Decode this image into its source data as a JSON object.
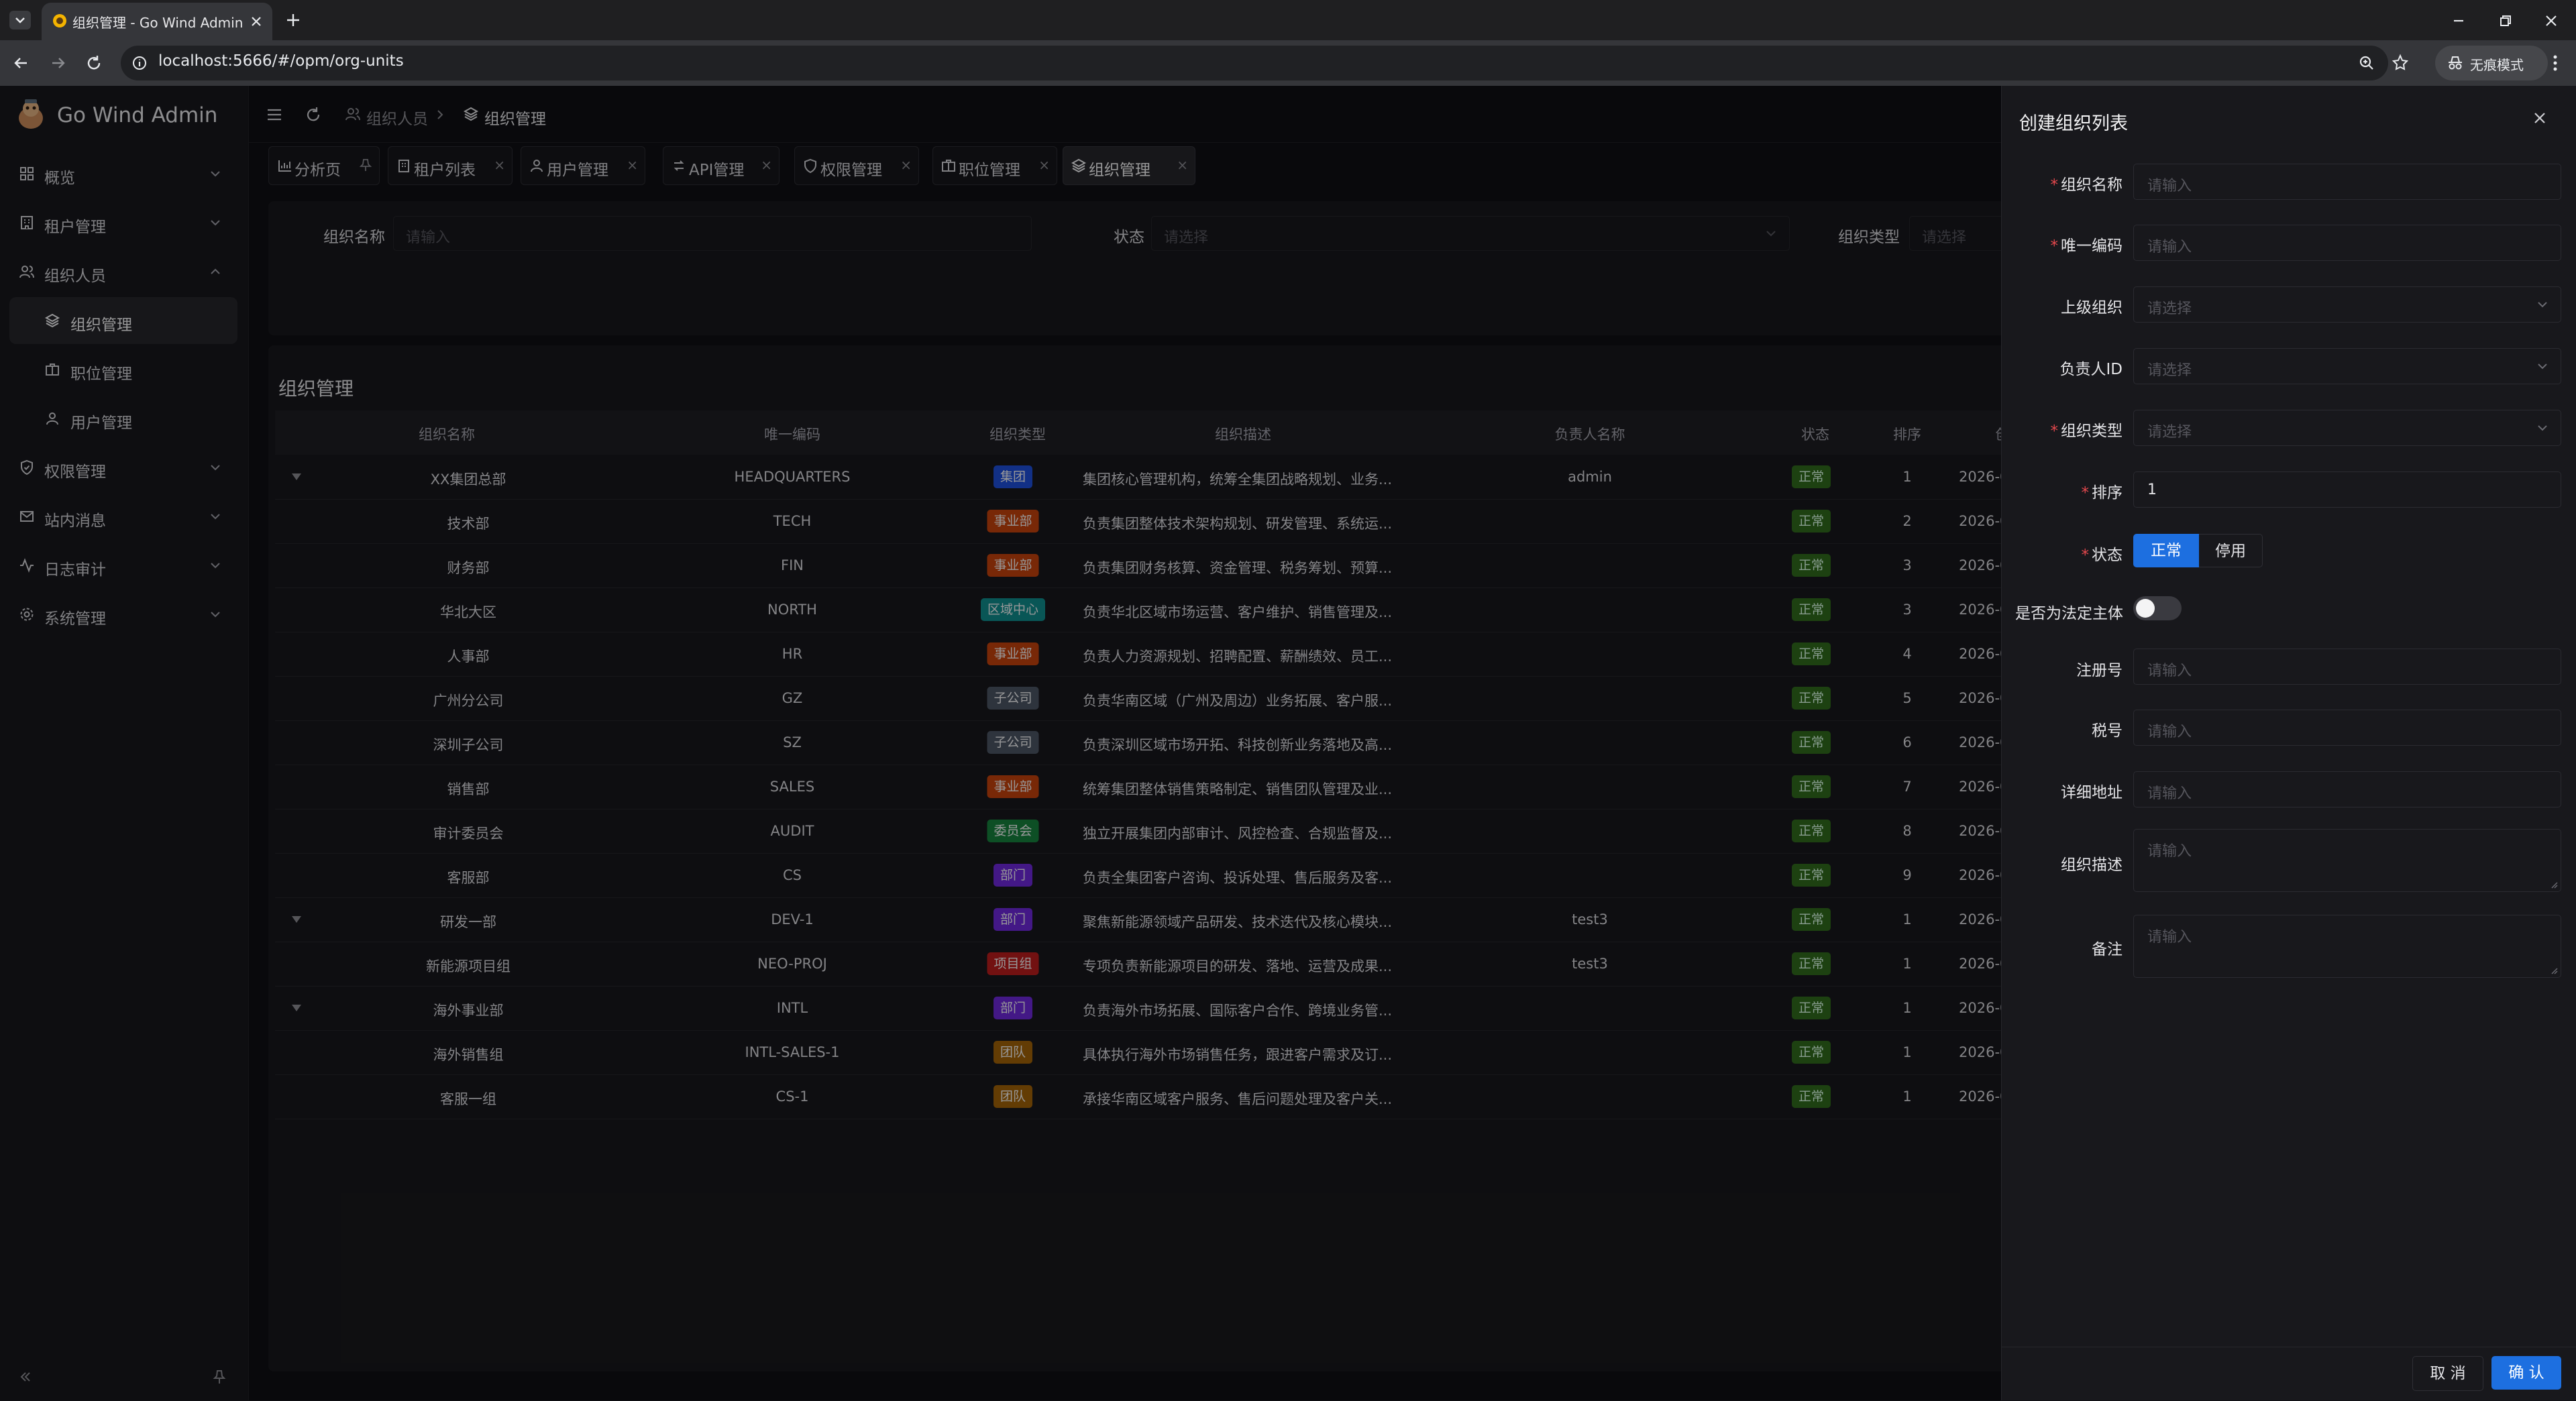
{
  "browser": {
    "tab_title": "组织管理 - Go Wind Admin",
    "url": "localhost:5666/#/opm/org-units",
    "incognito_label": "无痕模式"
  },
  "app": {
    "name": "Go Wind Admin"
  },
  "sidebar": {
    "items": [
      {
        "label": "概览",
        "icon": "dashboard-icon",
        "expandable": true
      },
      {
        "label": "租户管理",
        "icon": "building-icon",
        "expandable": true
      },
      {
        "label": "组织人员",
        "icon": "users-icon",
        "expandable": true,
        "expanded": true
      },
      {
        "label": "组织管理",
        "icon": "layers-icon",
        "sub": true,
        "active": true
      },
      {
        "label": "职位管理",
        "icon": "briefcase-icon",
        "sub": true
      },
      {
        "label": "用户管理",
        "icon": "user-icon",
        "sub": true
      },
      {
        "label": "权限管理",
        "icon": "shield-icon",
        "expandable": true
      },
      {
        "label": "站内消息",
        "icon": "mail-icon",
        "expandable": true
      },
      {
        "label": "日志审计",
        "icon": "activity-icon",
        "expandable": true
      },
      {
        "label": "系统管理",
        "icon": "gear-icon",
        "expandable": true
      }
    ]
  },
  "breadcrumb": [
    {
      "label": "组织人员",
      "icon": "users-icon"
    },
    {
      "label": "组织管理",
      "icon": "layers-icon"
    }
  ],
  "tabs": [
    {
      "label": "分析页",
      "icon": "chart-icon",
      "pinned": true
    },
    {
      "label": "租户列表",
      "icon": "building-icon"
    },
    {
      "label": "用户管理",
      "icon": "user-icon"
    },
    {
      "label": "API管理",
      "icon": "api-icon"
    },
    {
      "label": "权限管理",
      "icon": "shield-icon"
    },
    {
      "label": "职位管理",
      "icon": "briefcase-icon"
    },
    {
      "label": "组织管理",
      "icon": "layers-icon",
      "active": true
    }
  ],
  "search": {
    "org_name_label": "组织名称",
    "org_name_placeholder": "请输入",
    "status_label": "状态",
    "status_placeholder": "请选择",
    "org_type_label": "组织类型",
    "org_type_placeholder": "请选择"
  },
  "table": {
    "title": "组织管理",
    "columns": [
      "组织名称",
      "唯一编码",
      "组织类型",
      "组织描述",
      "负责人名称",
      "状态",
      "排序",
      "创"
    ],
    "rows": [
      {
        "name": "XX集团总部",
        "code": "HEADQUARTERS",
        "type": "集团",
        "type_color": "#1d4ed8",
        "desc": "集团核心管理机构，统筹全集团战略规划、业务...",
        "leader": "admin",
        "status": "正常",
        "sort": "1",
        "created": "2026-0",
        "expand": true
      },
      {
        "name": "技术部",
        "code": "TECH",
        "type": "事业部",
        "type_color": "#c2410c",
        "desc": "负责集团整体技术架构规划、研发管理、系统运...",
        "leader": "",
        "status": "正常",
        "sort": "2",
        "created": "2026-0"
      },
      {
        "name": "财务部",
        "code": "FIN",
        "type": "事业部",
        "type_color": "#c2410c",
        "desc": "负责集团财务核算、资金管理、税务筹划、预算...",
        "leader": "",
        "status": "正常",
        "sort": "3",
        "created": "2026-0"
      },
      {
        "name": "华北大区",
        "code": "NORTH",
        "type": "区域中心",
        "type_color": "#0f8c8c",
        "desc": "负责华北区域市场运营、客户维护、销售管理及...",
        "leader": "",
        "status": "正常",
        "sort": "3",
        "created": "2026-0"
      },
      {
        "name": "人事部",
        "code": "HR",
        "type": "事业部",
        "type_color": "#c2410c",
        "desc": "负责人力资源规划、招聘配置、薪酬绩效、员工...",
        "leader": "",
        "status": "正常",
        "sort": "4",
        "created": "2026-0"
      },
      {
        "name": "广州分公司",
        "code": "GZ",
        "type": "子公司",
        "type_color": "#4b5563",
        "desc": "负责华南区域（广州及周边）业务拓展、客户服...",
        "leader": "",
        "status": "正常",
        "sort": "5",
        "created": "2026-0"
      },
      {
        "name": "深圳子公司",
        "code": "SZ",
        "type": "子公司",
        "type_color": "#4b5563",
        "desc": "负责深圳区域市场开拓、科技创新业务落地及高...",
        "leader": "",
        "status": "正常",
        "sort": "6",
        "created": "2026-0"
      },
      {
        "name": "销售部",
        "code": "SALES",
        "type": "事业部",
        "type_color": "#c2410c",
        "desc": "统筹集团整体销售策略制定、销售团队管理及业...",
        "leader": "",
        "status": "正常",
        "sort": "7",
        "created": "2026-0"
      },
      {
        "name": "审计委员会",
        "code": "AUDIT",
        "type": "委员会",
        "type_color": "#15803d",
        "desc": "独立开展集团内部审计、风控检查、合规监督及...",
        "leader": "",
        "status": "正常",
        "sort": "8",
        "created": "2026-0"
      },
      {
        "name": "客服部",
        "code": "CS",
        "type": "部门",
        "type_color": "#6d28d9",
        "desc": "负责全集团客户咨询、投诉处理、售后服务及客...",
        "leader": "",
        "status": "正常",
        "sort": "9",
        "created": "2026-0"
      },
      {
        "name": "研发一部",
        "code": "DEV-1",
        "type": "部门",
        "type_color": "#6d28d9",
        "desc": "聚焦新能源领域产品研发、技术迭代及核心模块...",
        "leader": "test3",
        "status": "正常",
        "sort": "1",
        "created": "2026-0",
        "expand": true
      },
      {
        "name": "新能源项目组",
        "code": "NEO-PROJ",
        "type": "项目组",
        "type_color": "#b91c1c",
        "desc": "专项负责新能源项目的研发、落地、运营及成果...",
        "leader": "test3",
        "status": "正常",
        "sort": "1",
        "created": "2026-0"
      },
      {
        "name": "海外事业部",
        "code": "INTL",
        "type": "部门",
        "type_color": "#6d28d9",
        "desc": "负责海外市场拓展、国际客户合作、跨境业务管...",
        "leader": "",
        "status": "正常",
        "sort": "1",
        "created": "2026-0",
        "expand": true
      },
      {
        "name": "海外销售组",
        "code": "INTL-SALES-1",
        "type": "团队",
        "type_color": "#a16207",
        "desc": "具体执行海外市场销售任务，跟进客户需求及订...",
        "leader": "",
        "status": "正常",
        "sort": "1",
        "created": "2026-0"
      },
      {
        "name": "客服一组",
        "code": "CS-1",
        "type": "团队",
        "type_color": "#a16207",
        "desc": "承接华南区域客户服务、售后问题处理及客户关...",
        "leader": "",
        "status": "正常",
        "sort": "1",
        "created": "2026-0"
      }
    ]
  },
  "drawer": {
    "title": "创建组织列表",
    "fields": {
      "name": {
        "label": "组织名称",
        "placeholder": "请输入",
        "required": true
      },
      "code": {
        "label": "唯一编码",
        "placeholder": "请输入",
        "required": true
      },
      "parent": {
        "label": "上级组织",
        "placeholder": "请选择"
      },
      "leader": {
        "label": "负责人ID",
        "placeholder": "请选择"
      },
      "type": {
        "label": "组织类型",
        "placeholder": "请选择",
        "required": true
      },
      "sort": {
        "label": "排序",
        "value": "1",
        "required": true
      },
      "status": {
        "label": "状态",
        "options": [
          "正常",
          "停用"
        ],
        "selected": "正常",
        "required": true
      },
      "legal": {
        "label": "是否为法定主体",
        "checked": false
      },
      "reg_no": {
        "label": "注册号",
        "placeholder": "请输入"
      },
      "tax_no": {
        "label": "税号",
        "placeholder": "请输入"
      },
      "address": {
        "label": "详细地址",
        "placeholder": "请输入"
      },
      "description": {
        "label": "组织描述",
        "placeholder": "请输入"
      },
      "remark": {
        "label": "备注",
        "placeholder": "请输入"
      }
    },
    "cancel_label": "取 消",
    "confirm_label": "确 认"
  },
  "colors": {
    "primary": "#1d6fe0",
    "success": "#2f6a1c",
    "required": "#e5484d"
  }
}
